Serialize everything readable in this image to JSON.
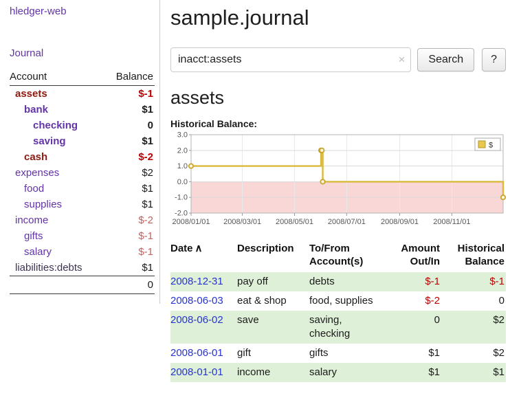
{
  "colors": {
    "accent_purple": "#6234a8",
    "maroon_account": "#8c1a10",
    "negative_red": "#c00000",
    "soft_negative_red": "#c26262",
    "date_link_blue": "#2633d0",
    "row_stripe_green": "#dff0d8",
    "chart_line_gold": "#d9b93d",
    "chart_negative_fill_pink": "#f9d7d7"
  },
  "sidebar": {
    "app_title": "hledger-web",
    "journal_label": "Journal",
    "accounts_header": {
      "account": "Account",
      "balance": "Balance"
    },
    "accounts": [
      {
        "name": "assets",
        "balance": "$-1",
        "indent": 1,
        "bold": true,
        "name_style": "maroon",
        "balance_style": "red"
      },
      {
        "name": "bank",
        "balance": "$1",
        "indent": 2,
        "bold": true,
        "name_style": "purple",
        "balance_style": "black"
      },
      {
        "name": "checking",
        "balance": "0",
        "indent": 3,
        "bold": true,
        "name_style": "purple",
        "balance_style": "black"
      },
      {
        "name": "saving",
        "balance": "$1",
        "indent": 3,
        "bold": true,
        "name_style": "purple",
        "balance_style": "black"
      },
      {
        "name": "cash",
        "balance": "$-2",
        "indent": 2,
        "bold": true,
        "name_style": "maroon",
        "balance_style": "red"
      },
      {
        "name": "expenses",
        "balance": "$2",
        "indent": 1,
        "bold": false,
        "name_style": "purple",
        "balance_style": "black"
      },
      {
        "name": "food",
        "balance": "$1",
        "indent": 2,
        "bold": false,
        "name_style": "purple",
        "balance_style": "black"
      },
      {
        "name": "supplies",
        "balance": "$1",
        "indent": 2,
        "bold": false,
        "name_style": "purple",
        "balance_style": "black"
      },
      {
        "name": "income",
        "balance": "$-2",
        "indent": 1,
        "bold": false,
        "name_style": "purple",
        "balance_style": "softred"
      },
      {
        "name": "gifts",
        "balance": "$-1",
        "indent": 2,
        "bold": false,
        "name_style": "purple",
        "balance_style": "softred"
      },
      {
        "name": "salary",
        "balance": "$-1",
        "indent": 2,
        "bold": false,
        "name_style": "purple",
        "balance_style": "softred"
      },
      {
        "name": "liabilities:debts",
        "balance": "$1",
        "indent": 1,
        "bold": false,
        "name_style": "dark",
        "balance_style": "black"
      }
    ],
    "accounts_total": "0"
  },
  "main": {
    "title": "sample.journal",
    "search": {
      "value": "inacct:assets",
      "clear_icon": "×",
      "button_label": "Search",
      "help_label": "?"
    },
    "account_heading": "assets",
    "chart_label": "Historical Balance:"
  },
  "chart_data": {
    "type": "line",
    "step": true,
    "title": "Historical Balance:",
    "legend": [
      {
        "label": "$",
        "color": "#e8c84d"
      }
    ],
    "legend_position": "top-right",
    "grid": true,
    "ylim": [
      -2.0,
      3.0
    ],
    "y_ticks": [
      3.0,
      2.0,
      1.0,
      0.0,
      -1.0,
      -2.0
    ],
    "x_range_days": [
      0,
      365
    ],
    "x_tick_days": [
      0,
      60,
      121,
      182,
      244,
      305
    ],
    "x_tick_labels": [
      "2008/01/01",
      "2008/03/01",
      "2008/05/01",
      "2008/07/01",
      "2008/09/01",
      "2008/11/01"
    ],
    "points": [
      {
        "date": "2008-01-01",
        "day": 0,
        "value": 1
      },
      {
        "date": "2008-06-01",
        "day": 152,
        "value": 2
      },
      {
        "date": "2008-06-02",
        "day": 153,
        "value": 2
      },
      {
        "date": "2008-06-03",
        "day": 154,
        "value": 0
      },
      {
        "date": "2008-12-31",
        "day": 365,
        "value": -1
      }
    ],
    "line_color": "#d9b93d",
    "negative_region_fill": "#f9d7d7"
  },
  "register": {
    "headers": {
      "date": "Date",
      "sort_icon": "∧",
      "description": "Description",
      "account_line1": "To/From",
      "account_line2": "Account(s)",
      "amount_line1": "Amount",
      "amount_line2": "Out/In",
      "balance_line1": "Historical",
      "balance_line2": "Balance"
    },
    "rows": [
      {
        "date": "2008-12-31",
        "description": "pay off",
        "accounts": "debts",
        "amount": "$-1",
        "amount_negative": true,
        "balance": "$-1",
        "balance_negative": true
      },
      {
        "date": "2008-06-03",
        "description": "eat & shop",
        "accounts": "food, supplies",
        "amount": "$-2",
        "amount_negative": true,
        "balance": "0",
        "balance_negative": false
      },
      {
        "date": "2008-06-02",
        "description": "save",
        "accounts": "saving, checking",
        "amount": "0",
        "amount_negative": false,
        "balance": "$2",
        "balance_negative": false
      },
      {
        "date": "2008-06-01",
        "description": "gift",
        "accounts": "gifts",
        "amount": "$1",
        "amount_negative": false,
        "balance": "$2",
        "balance_negative": false
      },
      {
        "date": "2008-01-01",
        "description": "income",
        "accounts": "salary",
        "amount": "$1",
        "amount_negative": false,
        "balance": "$1",
        "balance_negative": false
      }
    ]
  }
}
